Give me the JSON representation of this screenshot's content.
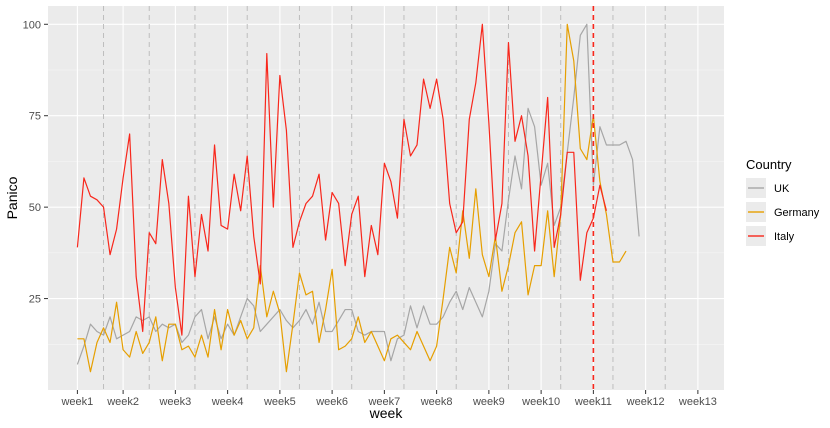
{
  "chart_data": {
    "type": "line",
    "xlabel": "week",
    "ylabel": "Panico",
    "ylim": [
      0,
      105
    ],
    "y_ticks": [
      25,
      50,
      75,
      100
    ],
    "x_ticks": [
      "week1",
      "week2",
      "week3",
      "week4",
      "week5",
      "week6",
      "week7",
      "week8",
      "week9",
      "week10",
      "week11",
      "week12",
      "week13"
    ],
    "x_tick_days": [
      1,
      8,
      16,
      24,
      32,
      40,
      48,
      56,
      64,
      72,
      80,
      88,
      96
    ],
    "xlim": [
      -3.5,
      100
    ],
    "grid": true,
    "legend": {
      "title": "Country",
      "position": "right"
    },
    "reference_lines": {
      "dashed_gray_at_days": [
        5,
        12,
        19,
        27,
        35,
        43,
        51,
        59,
        67,
        75,
        83,
        91
      ],
      "dashed_red_at_day": 80
    },
    "series": [
      {
        "name": "UK",
        "color": "#a6a6a6",
        "values": [
          7,
          12,
          18,
          16,
          15,
          20,
          14,
          15,
          16,
          20,
          19,
          20,
          16,
          18,
          17,
          18,
          13,
          15,
          20,
          22,
          14,
          20,
          14,
          18,
          15,
          20,
          25,
          23,
          16,
          18,
          20,
          22,
          19,
          17,
          19,
          22,
          18,
          24,
          16,
          16,
          19,
          22,
          22,
          16,
          15,
          16,
          16,
          16,
          8,
          14,
          15,
          23,
          17,
          23,
          18,
          18,
          20,
          24,
          27,
          22,
          28,
          24,
          20,
          27,
          40,
          38,
          52,
          64,
          55,
          77,
          72,
          56,
          62,
          45,
          50,
          65,
          80,
          97,
          100,
          56,
          72,
          67,
          67,
          67,
          68,
          63,
          42
        ]
      },
      {
        "name": "Germany",
        "color": "#e69f00",
        "values": [
          14,
          14,
          5,
          13,
          17,
          13,
          24,
          11,
          9,
          16,
          10,
          13,
          20,
          8,
          18,
          18,
          11,
          12,
          9,
          15,
          9,
          22,
          11,
          22,
          15,
          19,
          14,
          17,
          34,
          20,
          27,
          21,
          5,
          18,
          32,
          26,
          27,
          13,
          22,
          33,
          11,
          12,
          14,
          20,
          13,
          16,
          12,
          8,
          14,
          15,
          13,
          11,
          16,
          12,
          8,
          12,
          25,
          39,
          32,
          49,
          36,
          55,
          37,
          31,
          42,
          27,
          34,
          43,
          46,
          26,
          34,
          34,
          49,
          31,
          48,
          100,
          90,
          66,
          63,
          75,
          57,
          48,
          35,
          35,
          38
        ]
      },
      {
        "name": "Italy",
        "color": "#f8271c",
        "values": [
          39,
          58,
          53,
          52,
          50,
          37,
          44,
          58,
          70,
          31,
          16,
          43,
          40,
          63,
          51,
          28,
          15,
          53,
          31,
          48,
          38,
          67,
          45,
          44,
          59,
          49,
          64,
          42,
          29,
          92,
          50,
          86,
          71,
          39,
          46,
          51,
          53,
          59,
          41,
          54,
          51,
          34,
          48,
          53,
          31,
          45,
          37,
          62,
          57,
          47,
          74,
          64,
          67,
          85,
          77,
          85,
          74,
          51,
          43,
          46,
          74,
          84,
          100,
          73,
          41,
          51,
          95,
          68,
          75,
          64,
          38,
          59,
          80,
          39,
          48,
          65,
          65,
          30,
          43,
          47,
          56,
          49
        ]
      }
    ]
  }
}
